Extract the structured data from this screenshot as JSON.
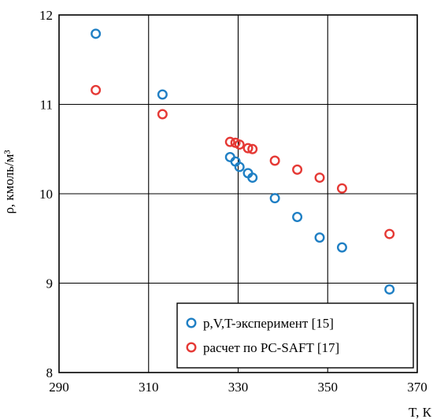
{
  "chart_data": {
    "type": "scatter",
    "xlabel": "T, К",
    "ylabel": "ρ, кмоль/м³",
    "xlim": [
      290,
      370
    ],
    "ylim": [
      8,
      12
    ],
    "xticks": [
      "290",
      "310",
      "330",
      "350",
      "370"
    ],
    "yticks": [
      "8",
      "9",
      "10",
      "11",
      "12"
    ],
    "grid": true,
    "legend_position": "bottom-right",
    "series": [
      {
        "name": "p,V,T-эксперимент [15]",
        "color": "#1f7fc4",
        "marker": "open-circle",
        "points": [
          {
            "x": 298.2,
            "y": 11.79
          },
          {
            "x": 313.1,
            "y": 11.11
          },
          {
            "x": 328.2,
            "y": 10.41
          },
          {
            "x": 329.4,
            "y": 10.36
          },
          {
            "x": 330.3,
            "y": 10.3
          },
          {
            "x": 332.2,
            "y": 10.23
          },
          {
            "x": 333.2,
            "y": 10.18
          },
          {
            "x": 338.2,
            "y": 9.95
          },
          {
            "x": 343.2,
            "y": 9.74
          },
          {
            "x": 348.2,
            "y": 9.51
          },
          {
            "x": 353.2,
            "y": 9.4
          },
          {
            "x": 363.8,
            "y": 8.93
          }
        ]
      },
      {
        "name": "расчет по PC-SAFT [17]",
        "color": "#e53935",
        "marker": "open-circle",
        "points": [
          {
            "x": 298.2,
            "y": 11.16
          },
          {
            "x": 313.1,
            "y": 10.89
          },
          {
            "x": 328.2,
            "y": 10.58
          },
          {
            "x": 329.4,
            "y": 10.57
          },
          {
            "x": 330.3,
            "y": 10.55
          },
          {
            "x": 332.2,
            "y": 10.51
          },
          {
            "x": 333.2,
            "y": 10.5
          },
          {
            "x": 338.2,
            "y": 10.37
          },
          {
            "x": 343.2,
            "y": 10.27
          },
          {
            "x": 348.2,
            "y": 10.18
          },
          {
            "x": 353.2,
            "y": 10.06
          },
          {
            "x": 363.8,
            "y": 9.55
          }
        ]
      }
    ]
  }
}
